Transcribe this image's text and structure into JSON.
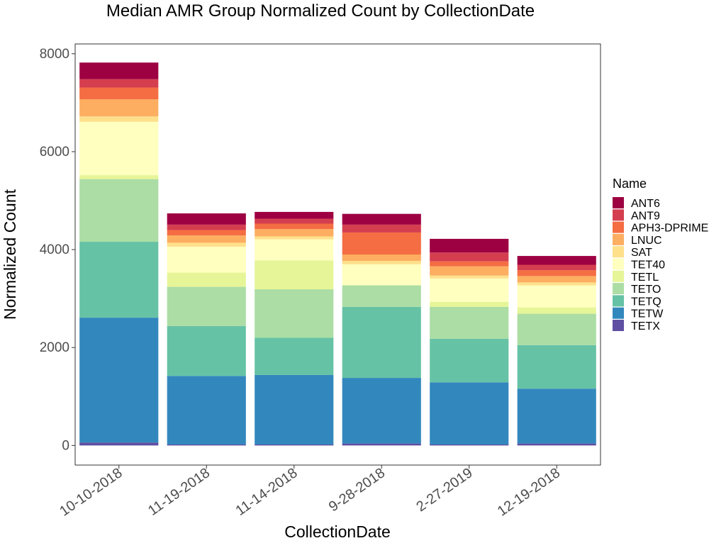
{
  "chart_data": {
    "type": "bar",
    "stacked": true,
    "title": "Median AMR Group Normalized Count by CollectionDate",
    "xlabel": "CollectionDate",
    "ylabel": "Normalized Count",
    "ylim": [
      -400,
      8200
    ],
    "yticks": [
      0,
      2000,
      4000,
      6000,
      8000
    ],
    "ytick_labels": [
      "0",
      "2000",
      "4000",
      "6000",
      "8000"
    ],
    "grid": false,
    "legend_title": "Name",
    "legend_position": "right",
    "categories": [
      "10-10-2018",
      "11-19-2018",
      "11-14-2018",
      "9-28-2018",
      "2-27-2019",
      "12-19-2018"
    ],
    "series": [
      {
        "name": "TETX",
        "color": "#5E4FA2",
        "values": [
          60,
          20,
          20,
          40,
          20,
          40
        ]
      },
      {
        "name": "TETW",
        "color": "#3288BD",
        "values": [
          2550,
          1400,
          1420,
          1340,
          1270,
          1120
        ]
      },
      {
        "name": "TETQ",
        "color": "#66C2A5",
        "values": [
          1550,
          1020,
          760,
          1450,
          890,
          890
        ]
      },
      {
        "name": "TETO",
        "color": "#ABDDA4",
        "values": [
          1280,
          800,
          990,
          440,
          650,
          640
        ]
      },
      {
        "name": "TETL",
        "color": "#E6F598",
        "values": [
          80,
          290,
          590,
          0,
          100,
          130
        ]
      },
      {
        "name": "TET40",
        "color": "#FFFFBF",
        "values": [
          1090,
          530,
          430,
          430,
          480,
          450
        ]
      },
      {
        "name": "SAT",
        "color": "#FEE08B",
        "values": [
          110,
          80,
          60,
          70,
          60,
          60
        ]
      },
      {
        "name": "LNUC",
        "color": "#FDAE61",
        "values": [
          350,
          150,
          150,
          130,
          190,
          130
        ]
      },
      {
        "name": "APH3-DPRIME",
        "color": "#F46D43",
        "values": [
          240,
          110,
          110,
          450,
          100,
          120
        ]
      },
      {
        "name": "ANT9",
        "color": "#D53E4F",
        "values": [
          170,
          110,
          100,
          160,
          180,
          110
        ]
      },
      {
        "name": "ANT6",
        "color": "#9E0142",
        "values": [
          340,
          230,
          140,
          220,
          280,
          180
        ]
      }
    ],
    "legend_order": [
      "ANT6",
      "ANT9",
      "APH3-DPRIME",
      "LNUC",
      "SAT",
      "TET40",
      "TETL",
      "TETO",
      "TETQ",
      "TETW",
      "TETX"
    ]
  }
}
